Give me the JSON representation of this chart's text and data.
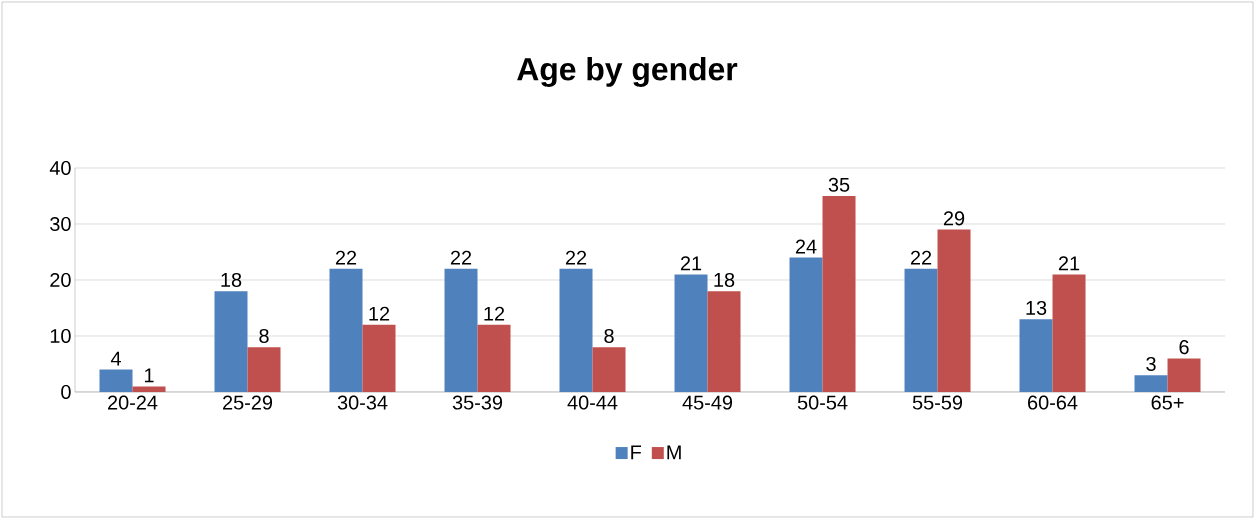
{
  "chart_data": {
    "type": "bar",
    "title": "Age by gender",
    "categories": [
      "20-24",
      "25-29",
      "30-34",
      "35-39",
      "40-44",
      "45-49",
      "50-54",
      "55-59",
      "60-64",
      "65+"
    ],
    "series": [
      {
        "name": "F",
        "color": "#4f81bd",
        "values": [
          4,
          18,
          22,
          22,
          22,
          21,
          24,
          22,
          13,
          3
        ]
      },
      {
        "name": "M",
        "color": "#c0504d",
        "values": [
          1,
          8,
          12,
          12,
          8,
          18,
          35,
          29,
          21,
          6
        ]
      }
    ],
    "ylim": [
      0,
      40
    ],
    "yticks": [
      0,
      10,
      20,
      30,
      40
    ],
    "grid": "y",
    "legend": "bottom",
    "data_labels": true
  }
}
